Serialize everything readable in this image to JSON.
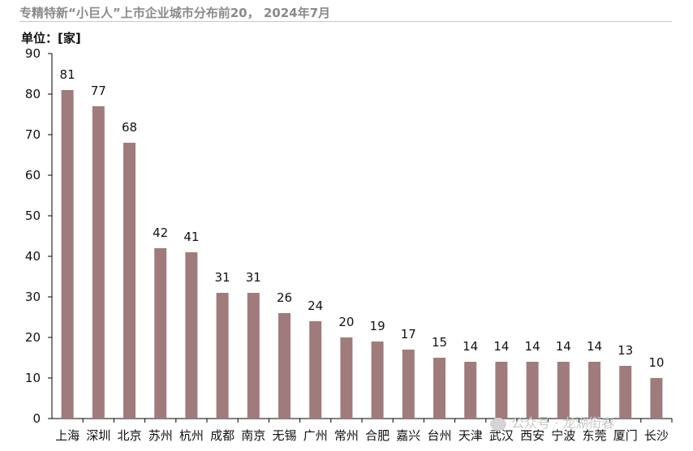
{
  "title": "专精特新“小巨人”上市企业城市分布前20， 2024年7月",
  "unit_label": "单位：[家]",
  "watermark": "公众号 · 龙湖街春",
  "colors": {
    "bar": "#a07b7b",
    "axis": "#000000",
    "title": "#8a8a8a"
  },
  "chart_data": {
    "type": "bar",
    "title": "专精特新“小巨人”上市企业城市分布前20， 2024年7月",
    "ylabel": "单位：[家]",
    "xlabel": "",
    "ylim": [
      0,
      90
    ],
    "yticks": [
      0,
      10,
      20,
      30,
      40,
      50,
      60,
      70,
      80,
      90
    ],
    "grid": false,
    "legend": "none",
    "categories": [
      "上海",
      "深圳",
      "北京",
      "苏州",
      "杭州",
      "成都",
      "南京",
      "无锡",
      "广州",
      "常州",
      "合肥",
      "嘉兴",
      "台州",
      "天津",
      "武汉",
      "西安",
      "宁波",
      "东莞",
      "厦门",
      "长沙"
    ],
    "values": [
      81,
      77,
      68,
      42,
      41,
      31,
      31,
      26,
      24,
      20,
      19,
      17,
      15,
      14,
      14,
      14,
      14,
      14,
      13,
      10
    ]
  }
}
